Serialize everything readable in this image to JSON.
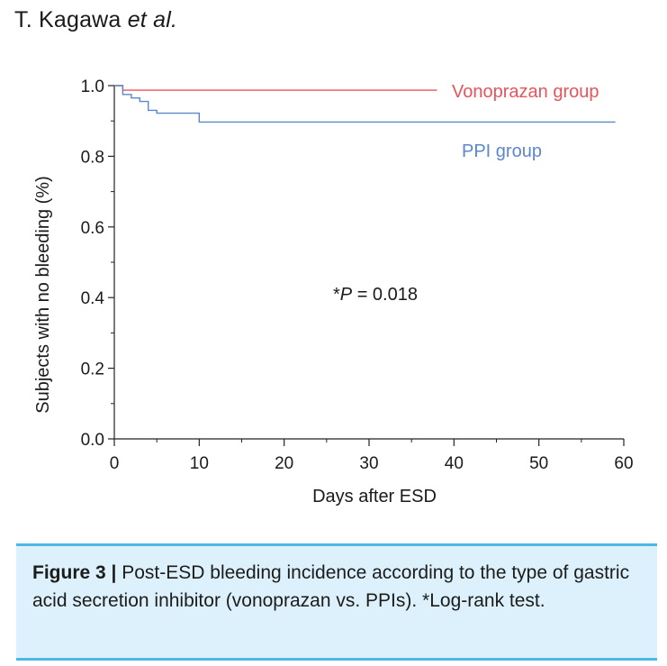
{
  "header": {
    "author": "T. Kagawa",
    "author_suffix": "et al."
  },
  "caption": {
    "label": "Figure 3 |",
    "text": "Post-ESD bleeding incidence according to the type of gastric acid secretion inhibitor (vonoprazan vs. PPIs). *Log-rank test."
  },
  "chart_data": {
    "type": "line",
    "xlabel": "Days after ESD",
    "ylabel": "Subjects with no bleeding (%)",
    "xlim": [
      0,
      60
    ],
    "ylim": [
      0,
      1.0
    ],
    "x_ticks": [
      "0",
      "10",
      "20",
      "30",
      "40",
      "50",
      "60"
    ],
    "y_ticks": [
      "0.0",
      "0.2",
      "0.4",
      "0.6",
      "0.8",
      "1.0"
    ],
    "grid": false,
    "annotation": {
      "prefix": "*",
      "symbol": "P",
      "text": " = 0.018"
    },
    "series": [
      {
        "name": "Vonoprazan group",
        "color": "#e8535d",
        "step": true,
        "points": [
          [
            0,
            1.0
          ],
          [
            1,
            1.0
          ],
          [
            1,
            0.987
          ],
          [
            38,
            0.987
          ]
        ]
      },
      {
        "name": "PPI group",
        "color": "#5b87cc",
        "step": true,
        "points": [
          [
            0,
            1.0
          ],
          [
            1,
            1.0
          ],
          [
            1,
            0.975
          ],
          [
            2,
            0.975
          ],
          [
            2,
            0.965
          ],
          [
            3,
            0.965
          ],
          [
            3,
            0.955
          ],
          [
            4,
            0.955
          ],
          [
            4,
            0.93
          ],
          [
            5,
            0.93
          ],
          [
            5,
            0.922
          ],
          [
            10,
            0.922
          ],
          [
            10,
            0.897
          ],
          [
            59,
            0.897
          ]
        ]
      }
    ]
  }
}
